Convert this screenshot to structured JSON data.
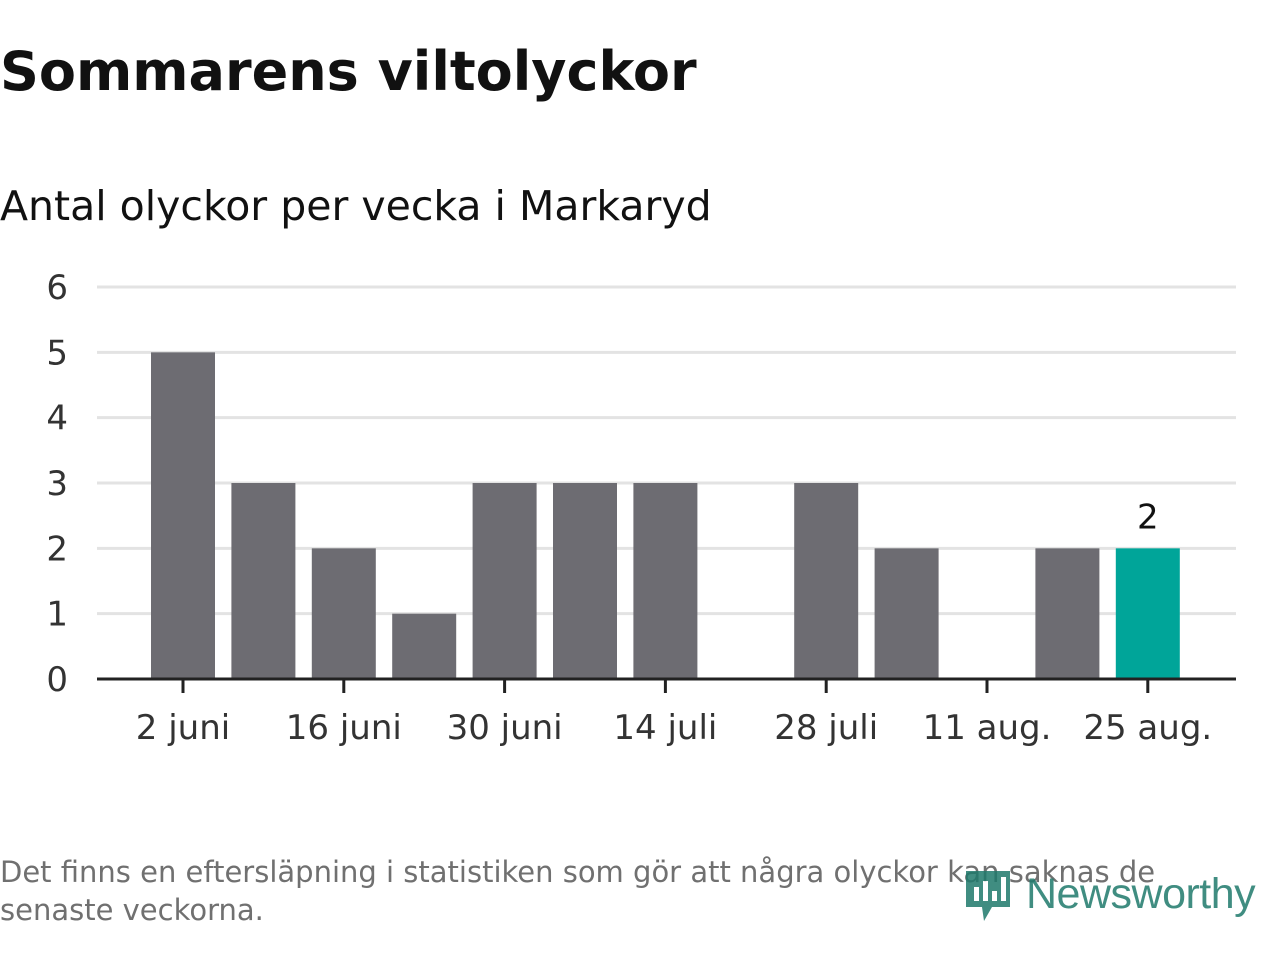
{
  "title": "Sommarens viltolyckor",
  "subtitle": "Antal olyckor per vecka i Markaryd",
  "footnote": "Det finns en eftersläpning i statistiken som gör att några olyckor kan saknas de senaste veckorna.",
  "logo": {
    "text": "Newsworthy",
    "icon": "newsworthy-logo-icon",
    "color": "#1f7a6c"
  },
  "colors": {
    "bar": "#6d6c72",
    "highlight": "#00a599",
    "grid": "#e3e3e3",
    "axis": "#222222"
  },
  "chart_data": {
    "type": "bar",
    "x": [
      "2 juni",
      "9 juni",
      "16 juni",
      "23 juni",
      "30 juni",
      "7 juli",
      "14 juli",
      "21 juli",
      "28 juli",
      "4 aug.",
      "11 aug.",
      "18 aug.",
      "25 aug."
    ],
    "values": [
      5,
      3,
      2,
      1,
      3,
      3,
      3,
      0,
      3,
      2,
      0,
      2,
      2
    ],
    "highlight_index": 12,
    "data_labels": [
      {
        "index": 12,
        "text": "2"
      }
    ],
    "x_tick_labels": [
      "2 juni",
      "16 juni",
      "30 juni",
      "14 juli",
      "28 juli",
      "11 aug.",
      "25 aug."
    ],
    "y_ticks": [
      0,
      1,
      2,
      3,
      4,
      5,
      6
    ],
    "ylim": [
      0,
      6
    ],
    "grid": true,
    "legend": "none"
  }
}
